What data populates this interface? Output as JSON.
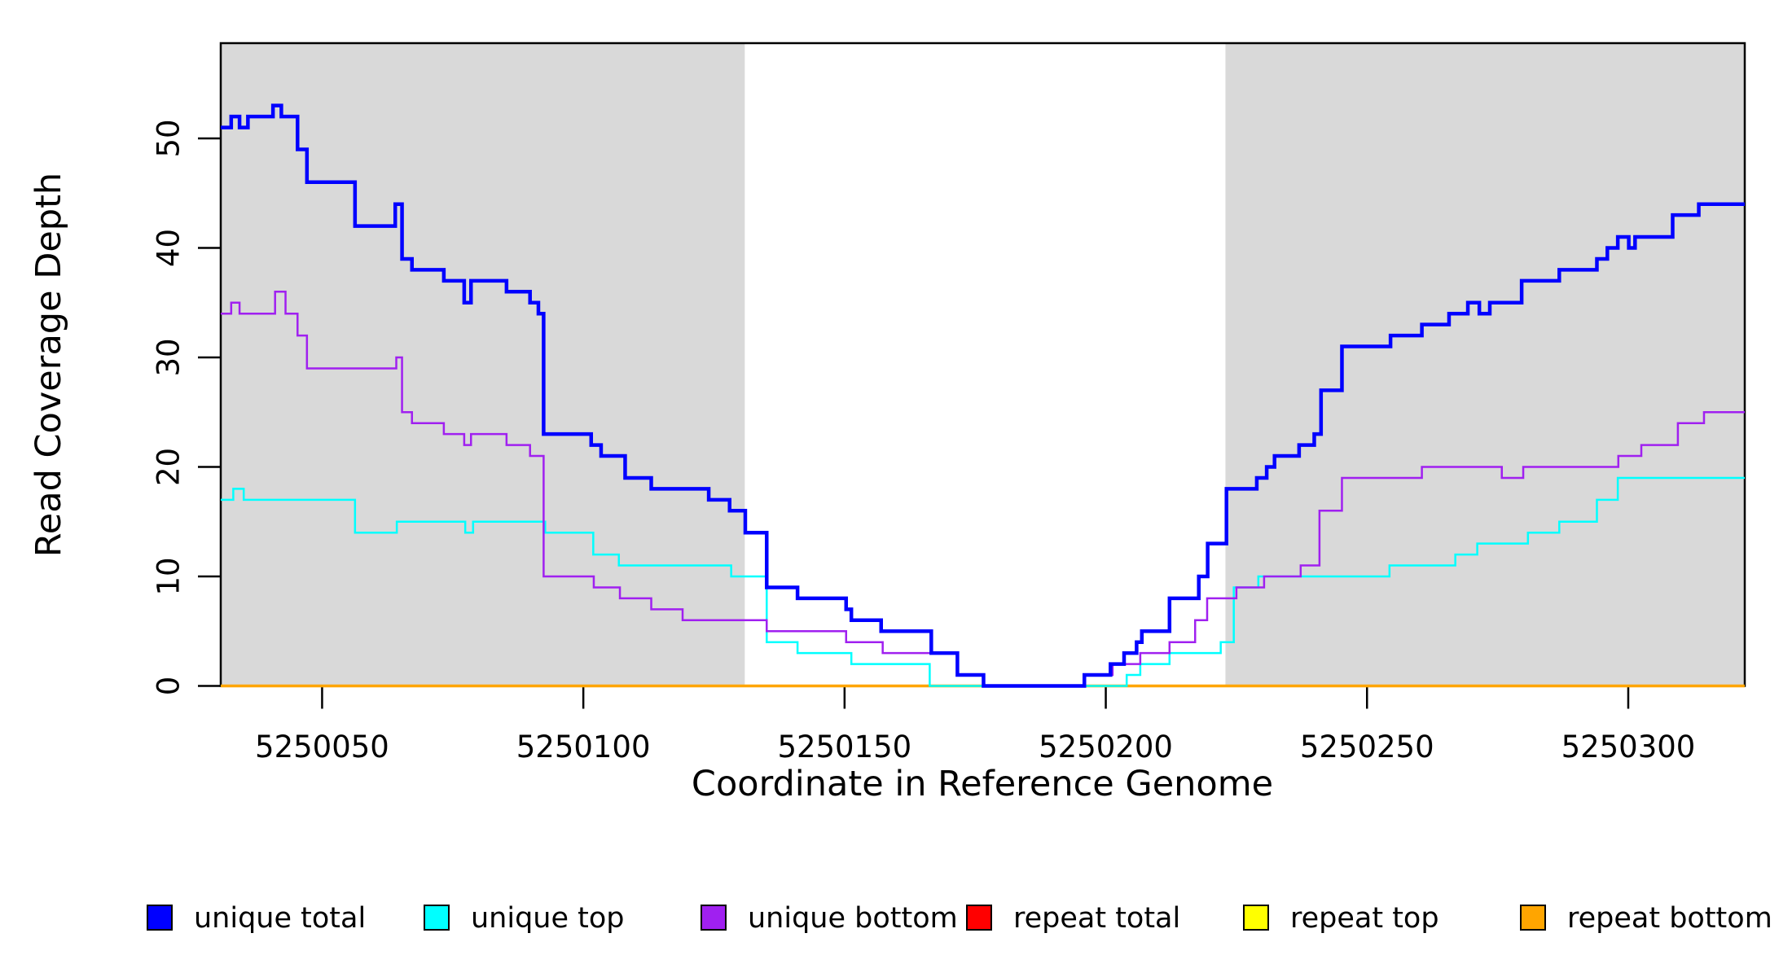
{
  "chart_data": {
    "type": "line",
    "subtype": "step-after",
    "title": "",
    "xlabel": "Coordinate in Reference Genome",
    "ylabel": "Read Coverage Depth",
    "xlim": [
      5250030.6,
      5250322.3
    ],
    "ylim": [
      0,
      58.7
    ],
    "x_ticks": [
      5250050,
      5250100,
      5250150,
      5250200,
      5250250,
      5250300
    ],
    "y_ticks": [
      0,
      10,
      20,
      30,
      40,
      50
    ],
    "grid": false,
    "legend_position": "bottom",
    "background_color": "#ffffff",
    "shaded_regions": [
      {
        "x0": 5250030.6,
        "x1": 5250130.9,
        "color": "#D9D9D9"
      },
      {
        "x0": 5250222.9,
        "x1": 5250322.3,
        "color": "#D9D9D9"
      }
    ],
    "series": [
      {
        "name": "unique total",
        "color": "#0000FF",
        "line_width": 4.5,
        "points": [
          [
            5250030.6,
            51
          ],
          [
            5250032.6,
            52
          ],
          [
            5250034.2,
            51
          ],
          [
            5250035.8,
            52
          ],
          [
            5250040.6,
            53
          ],
          [
            5250042.2,
            52
          ],
          [
            5250045.3,
            49
          ],
          [
            5250047.1,
            46
          ],
          [
            5250056.3,
            42
          ],
          [
            5250064,
            44
          ],
          [
            5250065.3,
            39
          ],
          [
            5250067.2,
            38
          ],
          [
            5250073.3,
            37
          ],
          [
            5250077.2,
            35
          ],
          [
            5250078.5,
            37
          ],
          [
            5250085.3,
            36
          ],
          [
            5250089.8,
            35
          ],
          [
            5250091.4,
            34
          ],
          [
            5250092.4,
            23
          ],
          [
            5250101.5,
            22
          ],
          [
            5250103.4,
            21
          ],
          [
            5250108,
            19
          ],
          [
            5250113,
            18
          ],
          [
            5250124,
            17
          ],
          [
            5250128,
            16
          ],
          [
            5250131,
            14
          ],
          [
            5250135.1,
            9
          ],
          [
            5250141,
            8
          ],
          [
            5250150.3,
            7
          ],
          [
            5250151.3,
            6
          ],
          [
            5250157,
            5
          ],
          [
            5250166.6,
            3
          ],
          [
            5250171.6,
            1
          ],
          [
            5250176.6,
            0
          ],
          [
            5250195.9,
            1
          ],
          [
            5250200.9,
            2
          ],
          [
            5250203.5,
            3
          ],
          [
            5250205.9,
            4
          ],
          [
            5250206.9,
            5
          ],
          [
            5250212.2,
            8
          ],
          [
            5250217.8,
            10
          ],
          [
            5250219.5,
            13
          ],
          [
            5250223.1,
            18
          ],
          [
            5250228.9,
            19
          ],
          [
            5250230.8,
            20
          ],
          [
            5250232.3,
            21
          ],
          [
            5250237,
            22
          ],
          [
            5250239.9,
            23
          ],
          [
            5250241.2,
            27
          ],
          [
            5250245.2,
            31
          ],
          [
            5250254.5,
            32
          ],
          [
            5250260.5,
            33
          ],
          [
            5250265.7,
            34
          ],
          [
            5250269.3,
            35
          ],
          [
            5250271.5,
            34
          ],
          [
            5250273.5,
            35
          ],
          [
            5250279.6,
            37
          ],
          [
            5250286.8,
            38
          ],
          [
            5250294,
            39
          ],
          [
            5250296,
            40
          ],
          [
            5250298,
            41
          ],
          [
            5250300.1,
            40
          ],
          [
            5250301.3,
            41
          ],
          [
            5250308.5,
            43
          ],
          [
            5250313.5,
            44
          ]
        ]
      },
      {
        "name": "unique top",
        "color": "#00FFFF",
        "line_width": 2.5,
        "points": [
          [
            5250030.6,
            17
          ],
          [
            5250033,
            18
          ],
          [
            5250035,
            17
          ],
          [
            5250056.3,
            14
          ],
          [
            5250064.3,
            15
          ],
          [
            5250077.4,
            14
          ],
          [
            5250078.9,
            15
          ],
          [
            5250092.7,
            14
          ],
          [
            5250101.9,
            12
          ],
          [
            5250106.8,
            11
          ],
          [
            5250128.3,
            10
          ],
          [
            5250135.1,
            4
          ],
          [
            5250141,
            3
          ],
          [
            5250151.3,
            2
          ],
          [
            5250166.3,
            0
          ],
          [
            5250204,
            1
          ],
          [
            5250206.6,
            2
          ],
          [
            5250212.2,
            3
          ],
          [
            5250222,
            4
          ],
          [
            5250224.5,
            9
          ],
          [
            5250229.2,
            10
          ],
          [
            5250254.3,
            11
          ],
          [
            5250266.9,
            12
          ],
          [
            5250271.1,
            13
          ],
          [
            5250280.8,
            14
          ],
          [
            5250286.8,
            15
          ],
          [
            5250294,
            17
          ],
          [
            5250298,
            19
          ]
        ]
      },
      {
        "name": "unique bottom",
        "color": "#A020F0",
        "line_width": 2.5,
        "points": [
          [
            5250030.6,
            34
          ],
          [
            5250032.6,
            35
          ],
          [
            5250034.2,
            34
          ],
          [
            5250041,
            36
          ],
          [
            5250043,
            34
          ],
          [
            5250045.3,
            32
          ],
          [
            5250047.1,
            29
          ],
          [
            5250064.2,
            30
          ],
          [
            5250065.3,
            25
          ],
          [
            5250067.2,
            24
          ],
          [
            5250073.3,
            23
          ],
          [
            5250077.2,
            22
          ],
          [
            5250078.5,
            23
          ],
          [
            5250085.3,
            22
          ],
          [
            5250089.8,
            21
          ],
          [
            5250092.4,
            10
          ],
          [
            5250102,
            9
          ],
          [
            5250107,
            8
          ],
          [
            5250113,
            7
          ],
          [
            5250119,
            6
          ],
          [
            5250135.1,
            5
          ],
          [
            5250150.3,
            4
          ],
          [
            5250157.3,
            3
          ],
          [
            5250171.6,
            1
          ],
          [
            5250176.6,
            0
          ],
          [
            5250195.9,
            1
          ],
          [
            5250201.3,
            2
          ],
          [
            5250206.6,
            3
          ],
          [
            5250212.2,
            4
          ],
          [
            5250217.1,
            6
          ],
          [
            5250219.4,
            8
          ],
          [
            5250225,
            9
          ],
          [
            5250230.3,
            10
          ],
          [
            5250237.3,
            11
          ],
          [
            5250240.9,
            16
          ],
          [
            5250245.2,
            19
          ],
          [
            5250260.5,
            20
          ],
          [
            5250275.8,
            19
          ],
          [
            5250279.9,
            20
          ],
          [
            5250298.1,
            21
          ],
          [
            5250302.5,
            22
          ],
          [
            5250309.5,
            24
          ],
          [
            5250314.5,
            25
          ]
        ]
      },
      {
        "name": "repeat total",
        "color": "#FF0000",
        "line_width": 3,
        "points": [
          [
            5250030.6,
            0
          ]
        ]
      },
      {
        "name": "repeat top",
        "color": "#FFFF00",
        "line_width": 3,
        "points": [
          [
            5250030.6,
            0
          ]
        ]
      },
      {
        "name": "repeat bottom",
        "color": "#FFA500",
        "line_width": 3.5,
        "points": [
          [
            5250030.6,
            0
          ]
        ]
      }
    ]
  },
  "legend": {
    "items": [
      {
        "label": "unique total",
        "color": "#0000FF"
      },
      {
        "label": "unique top",
        "color": "#00FFFF"
      },
      {
        "label": "unique bottom",
        "color": "#A020F0"
      },
      {
        "label": "repeat total",
        "color": "#FF0000"
      },
      {
        "label": "repeat top",
        "color": "#FFFF00"
      },
      {
        "label": "repeat bottom",
        "color": "#FFA500"
      }
    ]
  }
}
